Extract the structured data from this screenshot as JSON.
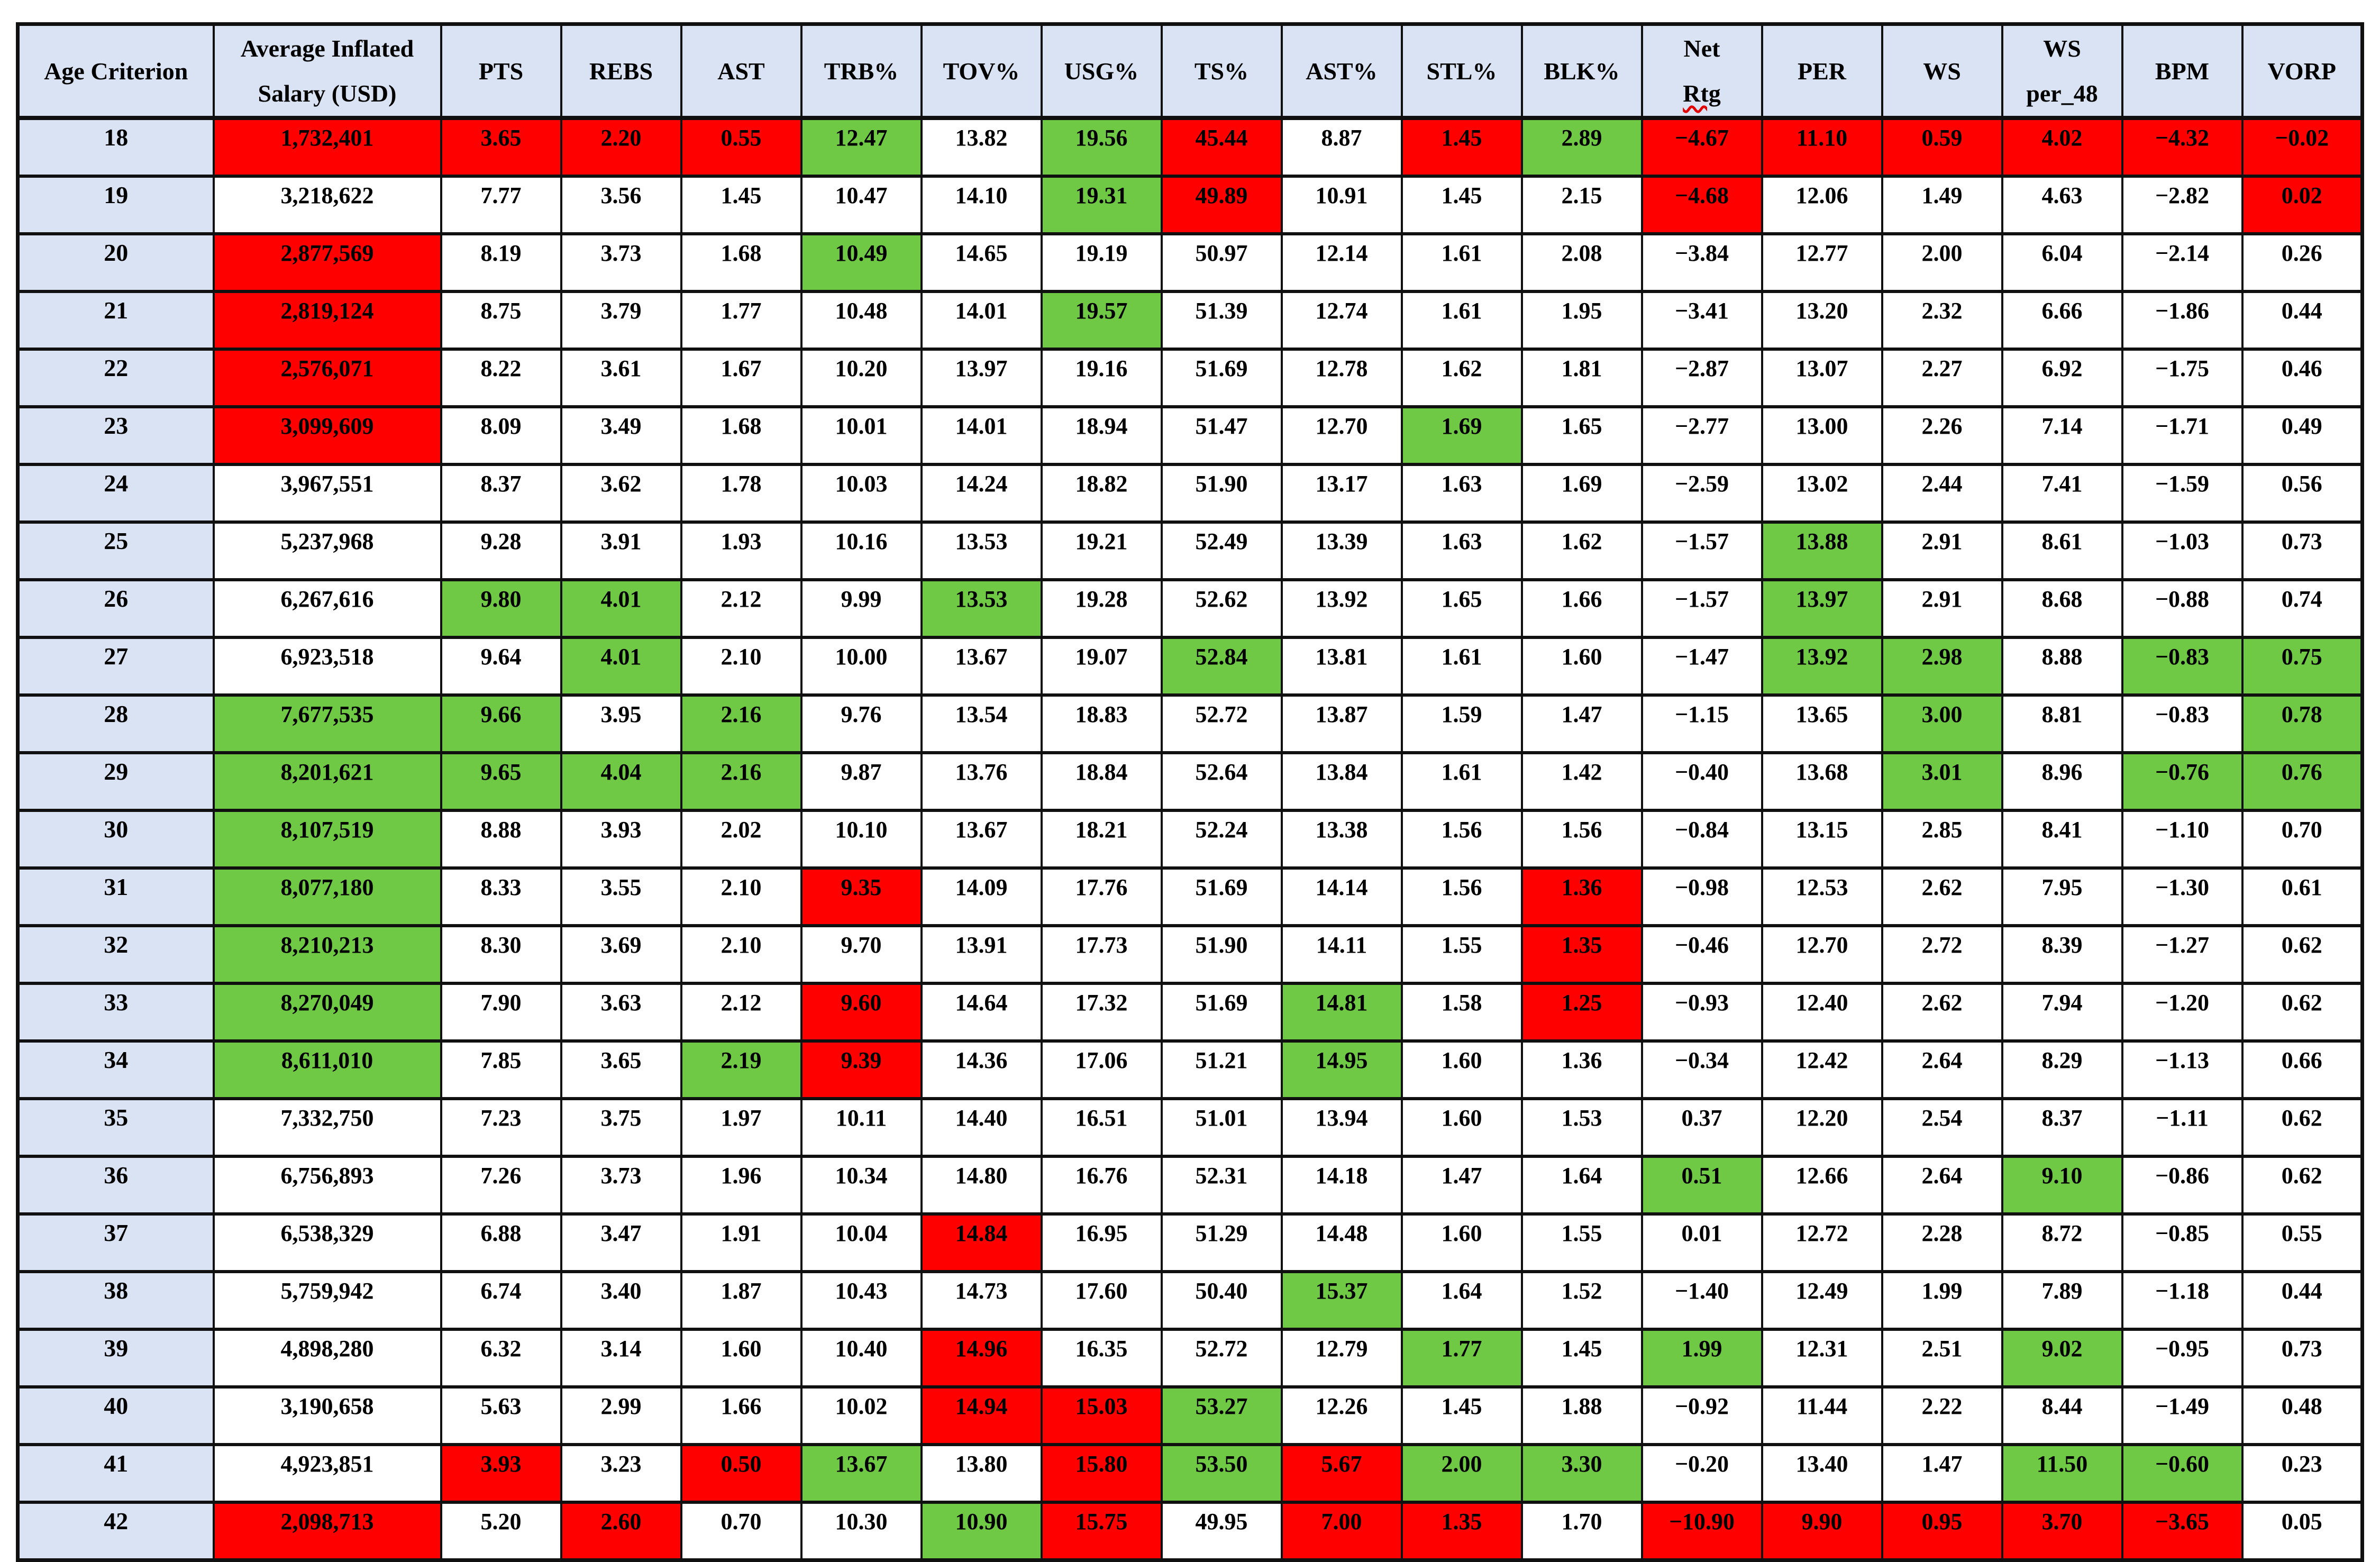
{
  "colors": {
    "cell_red": "#fe0000",
    "cell_green": "#6fc944",
    "header_blue": "#dae3f3",
    "grid": "#101010",
    "text": "#000000",
    "spellcheck_underline": "#e00000"
  },
  "table": {
    "columns": [
      {
        "id": "age",
        "label": "Age Criterion"
      },
      {
        "id": "salary",
        "label": "Average Inflated\nSalary (USD)"
      },
      {
        "id": "pts",
        "label": "PTS"
      },
      {
        "id": "rebs",
        "label": "REBS"
      },
      {
        "id": "ast",
        "label": "AST"
      },
      {
        "id": "trb",
        "label": "TRB%"
      },
      {
        "id": "tov",
        "label": "TOV%"
      },
      {
        "id": "usg",
        "label": "USG%"
      },
      {
        "id": "ts",
        "label": "TS%"
      },
      {
        "id": "astpct",
        "label": "AST%"
      },
      {
        "id": "stl",
        "label": "STL%"
      },
      {
        "id": "blk",
        "label": "BLK%"
      },
      {
        "id": "netrtg",
        "label": "Net\nRtg",
        "spellcheck_wavy_line": "Rtg"
      },
      {
        "id": "per",
        "label": "PER"
      },
      {
        "id": "ws",
        "label": "WS"
      },
      {
        "id": "wsp48",
        "label": "WS\nper_48"
      },
      {
        "id": "bpm",
        "label": "BPM"
      },
      {
        "id": "vorp",
        "label": "VORP"
      }
    ],
    "color_legend": {
      "r": "red",
      "g": "green",
      "w": "white"
    },
    "rows": [
      {
        "age": "18",
        "values": [
          "1,732,401",
          "3.65",
          "2.20",
          "0.55",
          "12.47",
          "13.82",
          "19.56",
          "45.44",
          "8.87",
          "1.45",
          "2.89",
          "−4.67",
          "11.10",
          "0.59",
          "4.02",
          "−4.32",
          "−0.02"
        ],
        "colors": "rrrrgwgrwrgrrrrrr"
      },
      {
        "age": "19",
        "values": [
          "3,218,622",
          "7.77",
          "3.56",
          "1.45",
          "10.47",
          "14.10",
          "19.31",
          "49.89",
          "10.91",
          "1.45",
          "2.15",
          "−4.68",
          "12.06",
          "1.49",
          "4.63",
          "−2.82",
          "0.02"
        ],
        "colors": "wwwwwwgrwwwrwwwwr"
      },
      {
        "age": "20",
        "values": [
          "2,877,569",
          "8.19",
          "3.73",
          "1.68",
          "10.49",
          "14.65",
          "19.19",
          "50.97",
          "12.14",
          "1.61",
          "2.08",
          "−3.84",
          "12.77",
          "2.00",
          "6.04",
          "−2.14",
          "0.26"
        ],
        "colors": "rwwwgwwwwwwwwwwww"
      },
      {
        "age": "21",
        "values": [
          "2,819,124",
          "8.75",
          "3.79",
          "1.77",
          "10.48",
          "14.01",
          "19.57",
          "51.39",
          "12.74",
          "1.61",
          "1.95",
          "−3.41",
          "13.20",
          "2.32",
          "6.66",
          "−1.86",
          "0.44"
        ],
        "colors": "rwwwwwgwwwwwwwwww"
      },
      {
        "age": "22",
        "values": [
          "2,576,071",
          "8.22",
          "3.61",
          "1.67",
          "10.20",
          "13.97",
          "19.16",
          "51.69",
          "12.78",
          "1.62",
          "1.81",
          "−2.87",
          "13.07",
          "2.27",
          "6.92",
          "−1.75",
          "0.46"
        ],
        "colors": "rwwwwwwwwwwwwwwww"
      },
      {
        "age": "23",
        "values": [
          "3,099,609",
          "8.09",
          "3.49",
          "1.68",
          "10.01",
          "14.01",
          "18.94",
          "51.47",
          "12.70",
          "1.69",
          "1.65",
          "−2.77",
          "13.00",
          "2.26",
          "7.14",
          "−1.71",
          "0.49"
        ],
        "colors": "rwwwwwwwwgwwwwwww"
      },
      {
        "age": "24",
        "values": [
          "3,967,551",
          "8.37",
          "3.62",
          "1.78",
          "10.03",
          "14.24",
          "18.82",
          "51.90",
          "13.17",
          "1.63",
          "1.69",
          "−2.59",
          "13.02",
          "2.44",
          "7.41",
          "−1.59",
          "0.56"
        ],
        "colors": "wwwwwwwwwwwwwwwww"
      },
      {
        "age": "25",
        "values": [
          "5,237,968",
          "9.28",
          "3.91",
          "1.93",
          "10.16",
          "13.53",
          "19.21",
          "52.49",
          "13.39",
          "1.63",
          "1.62",
          "−1.57",
          "13.88",
          "2.91",
          "8.61",
          "−1.03",
          "0.73"
        ],
        "colors": "wwwwwwwwwwwwgwwww"
      },
      {
        "age": "26",
        "values": [
          "6,267,616",
          "9.80",
          "4.01",
          "2.12",
          "9.99",
          "13.53",
          "19.28",
          "52.62",
          "13.92",
          "1.65",
          "1.66",
          "−1.57",
          "13.97",
          "2.91",
          "8.68",
          "−0.88",
          "0.74"
        ],
        "colors": "wggwwgwwwwwwgwwww"
      },
      {
        "age": "27",
        "values": [
          "6,923,518",
          "9.64",
          "4.01",
          "2.10",
          "10.00",
          "13.67",
          "19.07",
          "52.84",
          "13.81",
          "1.61",
          "1.60",
          "−1.47",
          "13.92",
          "2.98",
          "8.88",
          "−0.83",
          "0.75"
        ],
        "colors": "wwgwwwwgwwwwggwgg"
      },
      {
        "age": "28",
        "values": [
          "7,677,535",
          "9.66",
          "3.95",
          "2.16",
          "9.76",
          "13.54",
          "18.83",
          "52.72",
          "13.87",
          "1.59",
          "1.47",
          "−1.15",
          "13.65",
          "3.00",
          "8.81",
          "−0.83",
          "0.78"
        ],
        "colors": "ggwgwwwwwwwwwgwwg"
      },
      {
        "age": "29",
        "values": [
          "8,201,621",
          "9.65",
          "4.04",
          "2.16",
          "9.87",
          "13.76",
          "18.84",
          "52.64",
          "13.84",
          "1.61",
          "1.42",
          "−0.40",
          "13.68",
          "3.01",
          "8.96",
          "−0.76",
          "0.76"
        ],
        "colors": "ggggwwwwwwwwwgwgg"
      },
      {
        "age": "30",
        "values": [
          "8,107,519",
          "8.88",
          "3.93",
          "2.02",
          "10.10",
          "13.67",
          "18.21",
          "52.24",
          "13.38",
          "1.56",
          "1.56",
          "−0.84",
          "13.15",
          "2.85",
          "8.41",
          "−1.10",
          "0.70"
        ],
        "colors": "gwwwwwwwwwwwwwwww"
      },
      {
        "age": "31",
        "values": [
          "8,077,180",
          "8.33",
          "3.55",
          "2.10",
          "9.35",
          "14.09",
          "17.76",
          "51.69",
          "14.14",
          "1.56",
          "1.36",
          "−0.98",
          "12.53",
          "2.62",
          "7.95",
          "−1.30",
          "0.61"
        ],
        "colors": "gwwwrwwwwwrwwwwww"
      },
      {
        "age": "32",
        "values": [
          "8,210,213",
          "8.30",
          "3.69",
          "2.10",
          "9.70",
          "13.91",
          "17.73",
          "51.90",
          "14.11",
          "1.55",
          "1.35",
          "−0.46",
          "12.70",
          "2.72",
          "8.39",
          "−1.27",
          "0.62"
        ],
        "colors": "gwwwwwwwwwrwwwwww"
      },
      {
        "age": "33",
        "values": [
          "8,270,049",
          "7.90",
          "3.63",
          "2.12",
          "9.60",
          "14.64",
          "17.32",
          "51.69",
          "14.81",
          "1.58",
          "1.25",
          "−0.93",
          "12.40",
          "2.62",
          "7.94",
          "−1.20",
          "0.62"
        ],
        "colors": "gwwwrwwwgwrwwwwww"
      },
      {
        "age": "34",
        "values": [
          "8,611,010",
          "7.85",
          "3.65",
          "2.19",
          "9.39",
          "14.36",
          "17.06",
          "51.21",
          "14.95",
          "1.60",
          "1.36",
          "−0.34",
          "12.42",
          "2.64",
          "8.29",
          "−1.13",
          "0.66"
        ],
        "colors": "gwwgrwwwgwwwwwwww"
      },
      {
        "age": "35",
        "values": [
          "7,332,750",
          "7.23",
          "3.75",
          "1.97",
          "10.11",
          "14.40",
          "16.51",
          "51.01",
          "13.94",
          "1.60",
          "1.53",
          "0.37",
          "12.20",
          "2.54",
          "8.37",
          "−1.11",
          "0.62"
        ],
        "colors": "wwwwwwwwwwwwwwwww"
      },
      {
        "age": "36",
        "values": [
          "6,756,893",
          "7.26",
          "3.73",
          "1.96",
          "10.34",
          "14.80",
          "16.76",
          "52.31",
          "14.18",
          "1.47",
          "1.64",
          "0.51",
          "12.66",
          "2.64",
          "9.10",
          "−0.86",
          "0.62"
        ],
        "colors": "wwwwwwwwwwwgwwgww"
      },
      {
        "age": "37",
        "values": [
          "6,538,329",
          "6.88",
          "3.47",
          "1.91",
          "10.04",
          "14.84",
          "16.95",
          "51.29",
          "14.48",
          "1.60",
          "1.55",
          "0.01",
          "12.72",
          "2.28",
          "8.72",
          "−0.85",
          "0.55"
        ],
        "colors": "wwwwwrwwwwwwwwwww"
      },
      {
        "age": "38",
        "values": [
          "5,759,942",
          "6.74",
          "3.40",
          "1.87",
          "10.43",
          "14.73",
          "17.60",
          "50.40",
          "15.37",
          "1.64",
          "1.52",
          "−1.40",
          "12.49",
          "1.99",
          "7.89",
          "−1.18",
          "0.44"
        ],
        "colors": "wwwwwwwwgwwwwwwww"
      },
      {
        "age": "39",
        "values": [
          "4,898,280",
          "6.32",
          "3.14",
          "1.60",
          "10.40",
          "14.96",
          "16.35",
          "52.72",
          "12.79",
          "1.77",
          "1.45",
          "1.99",
          "12.31",
          "2.51",
          "9.02",
          "−0.95",
          "0.73"
        ],
        "colors": "wwwwwrwwwgwgwwgww"
      },
      {
        "age": "40",
        "values": [
          "3,190,658",
          "5.63",
          "2.99",
          "1.66",
          "10.02",
          "14.94",
          "15.03",
          "53.27",
          "12.26",
          "1.45",
          "1.88",
          "−0.92",
          "11.44",
          "2.22",
          "8.44",
          "−1.49",
          "0.48"
        ],
        "colors": "wwwwwrrgwwwwwwwww"
      },
      {
        "age": "41",
        "values": [
          "4,923,851",
          "3.93",
          "3.23",
          "0.50",
          "13.67",
          "13.80",
          "15.80",
          "53.50",
          "5.67",
          "2.00",
          "3.30",
          "−0.20",
          "13.40",
          "1.47",
          "11.50",
          "−0.60",
          "0.23"
        ],
        "colors": "wrwrgwrgrggwwwggw"
      },
      {
        "age": "42",
        "values": [
          "2,098,713",
          "5.20",
          "2.60",
          "0.70",
          "10.30",
          "10.90",
          "15.75",
          "49.95",
          "7.00",
          "1.35",
          "1.70",
          "−10.90",
          "9.90",
          "0.95",
          "3.70",
          "−3.65",
          "0.05"
        ],
        "colors": "rwrwwgrwrrwrrrrrw"
      }
    ]
  }
}
